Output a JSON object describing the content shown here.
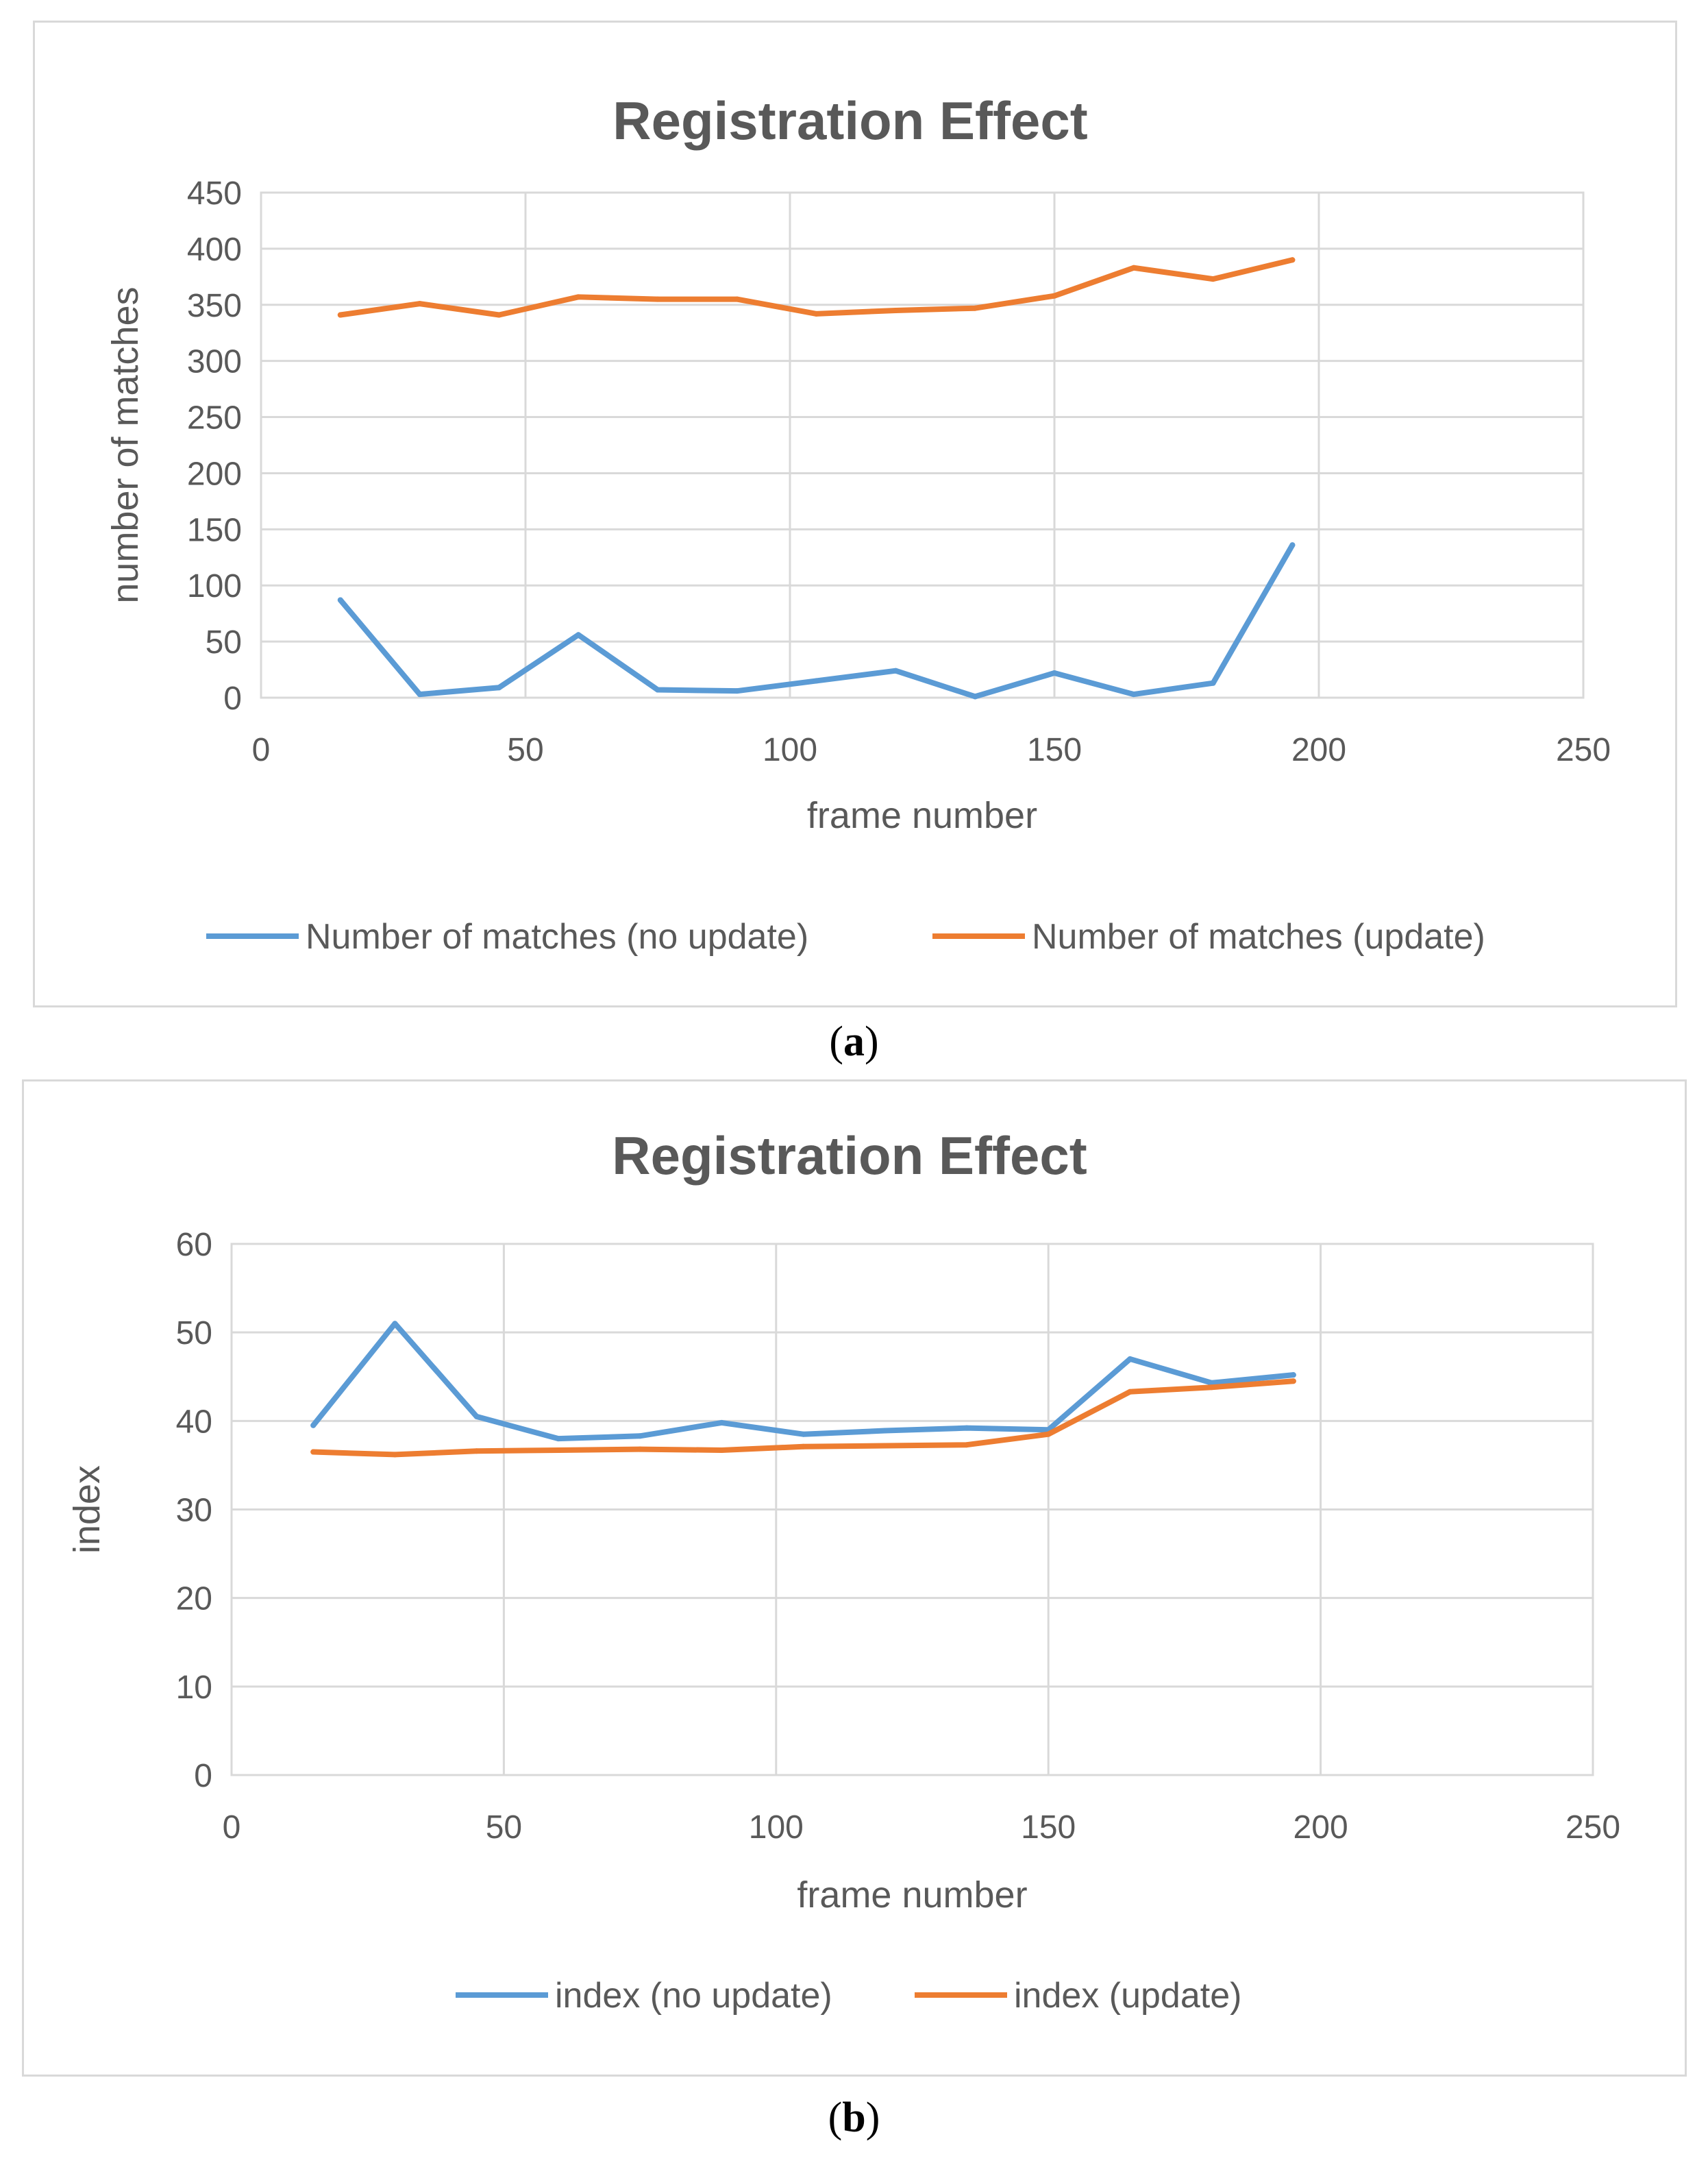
{
  "chart_data": [
    {
      "type": "line",
      "title": "Registration Effect",
      "xlabel": "frame number",
      "ylabel": "number of matches",
      "xlim": [
        0,
        250
      ],
      "ylim": [
        0,
        450
      ],
      "xticks": [
        0,
        50,
        100,
        150,
        200,
        250
      ],
      "yticks": [
        0,
        50,
        100,
        150,
        200,
        250,
        300,
        350,
        400,
        450
      ],
      "grid": true,
      "legend_position": "bottom",
      "x": [
        15,
        30,
        45,
        60,
        75,
        90,
        105,
        120,
        135,
        150,
        165,
        180,
        195
      ],
      "series": [
        {
          "name": "Number of matches (no  update)",
          "color": "#5b9bd5",
          "values": [
            87,
            3,
            9,
            56,
            7,
            6,
            15,
            24,
            1,
            22,
            3,
            13,
            136
          ]
        },
        {
          "name": "Number of matches (update)",
          "color": "#ed7d31",
          "values": [
            341,
            351,
            341,
            357,
            355,
            355,
            342,
            345,
            347,
            358,
            383,
            373,
            390
          ]
        }
      ]
    },
    {
      "type": "line",
      "title": "Registration Effect",
      "xlabel": "frame number",
      "ylabel": "index",
      "xlim": [
        0,
        250
      ],
      "ylim": [
        0,
        60
      ],
      "xticks": [
        0,
        50,
        100,
        150,
        200,
        250
      ],
      "yticks": [
        0,
        10,
        20,
        30,
        40,
        50,
        60
      ],
      "grid": true,
      "legend_position": "bottom",
      "x": [
        15,
        30,
        45,
        60,
        75,
        90,
        105,
        120,
        135,
        150,
        165,
        180,
        195
      ],
      "series": [
        {
          "name": "index (no update)",
          "color": "#5b9bd5",
          "values": [
            39.5,
            51,
            40.5,
            38,
            38.3,
            39.8,
            38.5,
            38.9,
            39.2,
            39.0,
            47,
            44.3,
            45.2
          ]
        },
        {
          "name": "index (update)",
          "color": "#ed7d31",
          "values": [
            36.5,
            36.2,
            36.6,
            36.7,
            36.8,
            36.7,
            37.1,
            37.2,
            37.3,
            38.5,
            43.3,
            43.8,
            44.5
          ]
        }
      ]
    }
  ],
  "captions": {
    "a": "a",
    "b": "b"
  }
}
